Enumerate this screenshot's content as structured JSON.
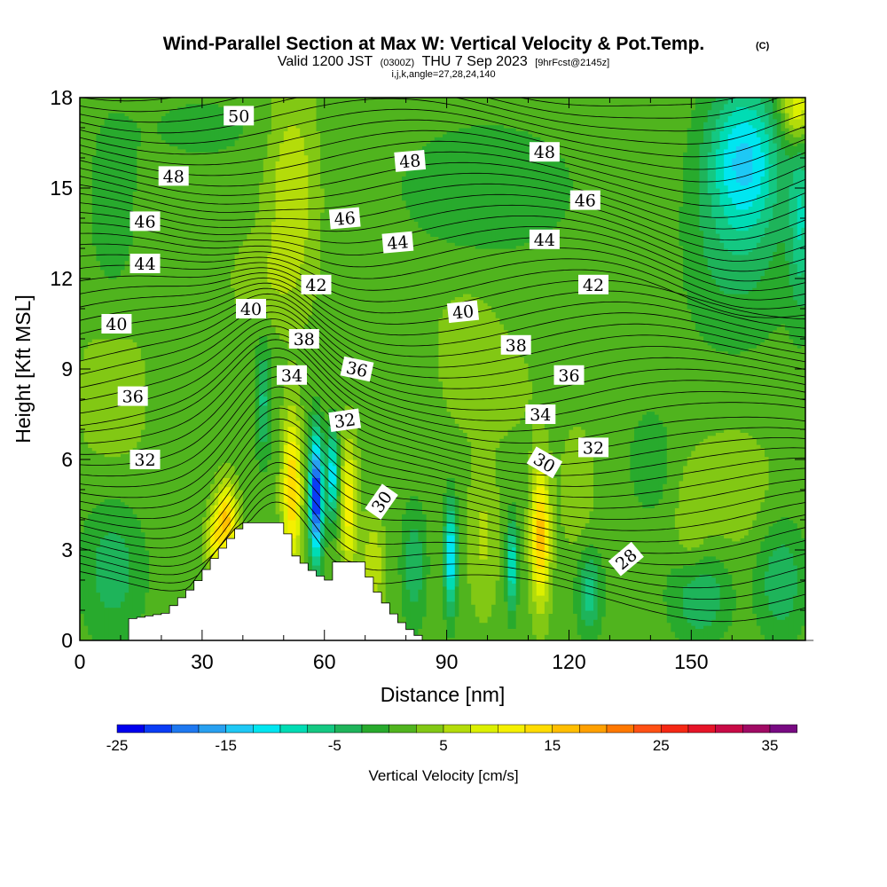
{
  "chart_data": {
    "type": "heatmap",
    "title": "Wind-Parallel Section at Max W: Vertical Velocity & Pot.Temp.",
    "title_suffix": "(C)",
    "subtitle": {
      "prefix": "Valid 1200 JST",
      "utc": "(0300Z)",
      "date": "THU 7 Sep 2023",
      "forecast": "[9hrFcst@2145z]"
    },
    "indices_line": "i,j,k,angle=27,28,24,140",
    "xlabel": "Distance [nm]",
    "ylabel": "Height [Kft MSL]",
    "xlim": [
      0,
      178
    ],
    "ylim": [
      0,
      18
    ],
    "x_ticks": [
      0,
      30,
      60,
      90,
      120,
      150
    ],
    "x_tick_labels": [
      "0",
      "30",
      "60",
      "90",
      "120",
      "150"
    ],
    "y_ticks": [
      0,
      3,
      6,
      9,
      12,
      15,
      18
    ],
    "y_tick_labels": [
      "0",
      "3",
      "6",
      "9",
      "12",
      "15",
      "18"
    ],
    "colorbar": {
      "label": "Vertical Velocity [cm/s]",
      "min": -25,
      "max": 35,
      "step": 2.5,
      "tick_values": [
        -25,
        -15,
        -5,
        5,
        15,
        25,
        35
      ],
      "tick_labels": [
        "-25",
        "-15",
        "-5",
        "5",
        "15",
        "25",
        "35"
      ],
      "colors": [
        "#0000ee",
        "#0a3cf5",
        "#1e78f0",
        "#28a0f0",
        "#1ec8f5",
        "#00e6f0",
        "#00dcb4",
        "#14c882",
        "#1eb45a",
        "#28aa2d",
        "#50b41e",
        "#82c814",
        "#b4dc0a",
        "#dcf000",
        "#f5f000",
        "#ffdc00",
        "#ffbe00",
        "#ffa000",
        "#ff7800",
        "#ff5014",
        "#f52814",
        "#e61428",
        "#c80a46",
        "#a00a64",
        "#780a82"
      ]
    },
    "terrain": [
      {
        "x": 0,
        "h": 0
      },
      {
        "x": 10,
        "h": 0
      },
      {
        "x": 11,
        "h": 0.7
      },
      {
        "x": 20,
        "h": 0.9
      },
      {
        "x": 27,
        "h": 1.8
      },
      {
        "x": 33,
        "h": 2.9
      },
      {
        "x": 38,
        "h": 3.7
      },
      {
        "x": 40,
        "h": 3.9
      },
      {
        "x": 49,
        "h": 3.9
      },
      {
        "x": 52,
        "h": 2.8
      },
      {
        "x": 57,
        "h": 2.2
      },
      {
        "x": 60,
        "h": 2.0
      },
      {
        "x": 62,
        "h": 2.6
      },
      {
        "x": 68,
        "h": 2.6
      },
      {
        "x": 72,
        "h": 1.6
      },
      {
        "x": 77,
        "h": 0.7
      },
      {
        "x": 81,
        "h": 0.25
      },
      {
        "x": 84,
        "h": 0
      },
      {
        "x": 178,
        "h": 0
      }
    ],
    "series": [
      {
        "name": "theta_contours",
        "levels": [
          28,
          30,
          32,
          34,
          36,
          38,
          40,
          42,
          44,
          46,
          48,
          50
        ]
      }
    ],
    "contour_labels": [
      {
        "text": "50",
        "x": 39,
        "y": 17.4,
        "angle": 0
      },
      {
        "text": "48",
        "x": 23,
        "y": 15.4,
        "angle": 0
      },
      {
        "text": "48",
        "x": 81,
        "y": 15.9,
        "angle": -5
      },
      {
        "text": "48",
        "x": 114,
        "y": 16.2,
        "angle": 0
      },
      {
        "text": "46",
        "x": 16,
        "y": 13.9,
        "angle": 0
      },
      {
        "text": "46",
        "x": 65,
        "y": 14.0,
        "angle": -5
      },
      {
        "text": "46",
        "x": 124,
        "y": 14.6,
        "angle": 0
      },
      {
        "text": "44",
        "x": 16,
        "y": 12.5,
        "angle": 0
      },
      {
        "text": "44",
        "x": 78,
        "y": 13.2,
        "angle": -5
      },
      {
        "text": "44",
        "x": 114,
        "y": 13.3,
        "angle": 0
      },
      {
        "text": "42",
        "x": 58,
        "y": 11.8,
        "angle": 0
      },
      {
        "text": "42",
        "x": 126,
        "y": 11.8,
        "angle": 0
      },
      {
        "text": "40",
        "x": 9,
        "y": 10.5,
        "angle": 0
      },
      {
        "text": "40",
        "x": 42,
        "y": 11.0,
        "angle": 0
      },
      {
        "text": "40",
        "x": 94,
        "y": 10.9,
        "angle": -6
      },
      {
        "text": "38",
        "x": 55,
        "y": 10.0,
        "angle": 0
      },
      {
        "text": "38",
        "x": 107,
        "y": 9.8,
        "angle": 0
      },
      {
        "text": "36",
        "x": 13,
        "y": 8.1,
        "angle": 0
      },
      {
        "text": "36",
        "x": 68,
        "y": 9.0,
        "angle": 12
      },
      {
        "text": "36",
        "x": 120,
        "y": 8.8,
        "angle": 0
      },
      {
        "text": "34",
        "x": 52,
        "y": 8.8,
        "angle": 0
      },
      {
        "text": "34",
        "x": 113,
        "y": 7.5,
        "angle": 0
      },
      {
        "text": "32",
        "x": 16,
        "y": 6.0,
        "angle": 0
      },
      {
        "text": "32",
        "x": 65,
        "y": 7.3,
        "angle": -8
      },
      {
        "text": "32",
        "x": 126,
        "y": 6.4,
        "angle": 0
      },
      {
        "text": "30",
        "x": 74,
        "y": 4.6,
        "angle": -55
      },
      {
        "text": "30",
        "x": 114,
        "y": 5.9,
        "angle": 30
      },
      {
        "text": "28",
        "x": 134,
        "y": 2.7,
        "angle": -40
      }
    ]
  }
}
